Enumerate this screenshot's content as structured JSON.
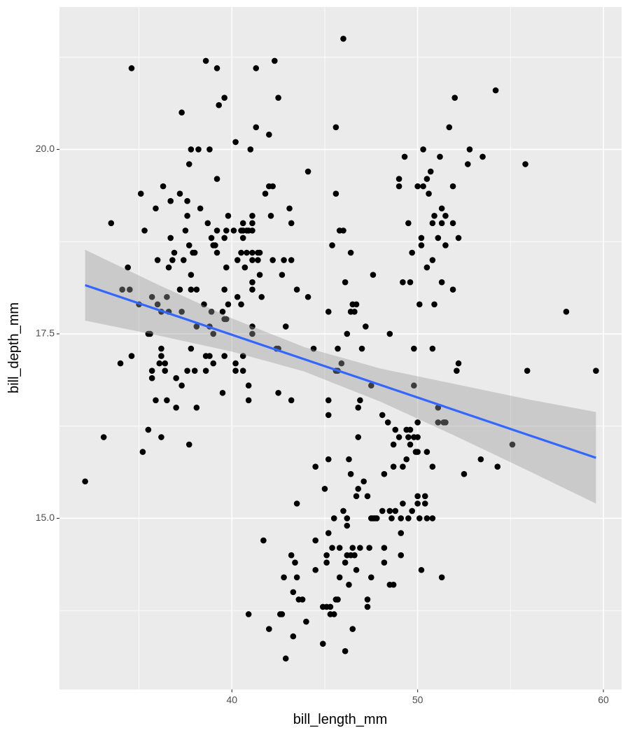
{
  "chart_data": {
    "type": "scatter",
    "x_label": "bill_length_mm",
    "y_label": "bill_depth_mm",
    "xlim": [
      30.72,
      60.98
    ],
    "ylim": [
      12.68,
      21.93
    ],
    "xticks": [
      40,
      50,
      60
    ],
    "yticks": [
      {
        "value": 15,
        "label": "15.0"
      },
      17.5,
      {
        "value": 20,
        "label": "20.0"
      }
    ],
    "x_minor_breaks": [
      35,
      45,
      55
    ],
    "y_minor_breaks": [
      13.75,
      16.25,
      18.75,
      21.25
    ],
    "grid": true,
    "panel_color": "#ebebeb",
    "point_color": "#000000",
    "x": [
      32.1,
      33.1,
      33.5,
      34.0,
      34.1,
      34.4,
      34.5,
      34.6,
      34.6,
      35.0,
      35.1,
      35.2,
      35.3,
      35.5,
      35.5,
      35.6,
      35.7,
      35.7,
      35.7,
      35.9,
      35.9,
      36.0,
      36.0,
      36.2,
      36.2,
      36.2,
      36.2,
      36.1,
      36.3,
      36.4,
      36.4,
      36.5,
      36.5,
      36.6,
      36.7,
      36.6,
      36.7,
      36.8,
      36.9,
      37.0,
      37.0,
      37.2,
      37.2,
      37.3,
      37.3,
      37.3,
      37.4,
      37.5,
      37.6,
      37.6,
      37.6,
      37.7,
      37.7,
      37.7,
      37.8,
      37.8,
      37.8,
      37.8,
      37.9,
      38.0,
      38.0,
      38.1,
      38.1,
      38.1,
      38.2,
      38.3,
      38.5,
      38.6,
      38.6,
      38.6,
      38.7,
      38.8,
      38.8,
      38.8,
      38.9,
      38.9,
      39.0,
      39.0,
      39.0,
      39.1,
      39.2,
      39.2,
      39.2,
      39.2,
      39.3,
      39.5,
      39.5,
      39.6,
      39.6,
      39.6,
      39.7,
      39.6,
      39.6,
      39.7,
      39.7,
      39.8,
      39.8,
      40.1,
      40.2,
      40.2,
      40.2,
      40.3,
      40.3,
      40.5,
      40.5,
      40.5,
      40.6,
      40.6,
      40.6,
      40.6,
      40.6,
      40.7,
      40.8,
      40.8,
      40.9,
      40.9,
      40.9,
      40.9,
      41.0,
      41.1,
      41.1,
      41.1,
      41.1,
      41.1,
      41.1,
      41.1,
      41.1,
      41.1,
      41.3,
      41.3,
      41.4,
      41.4,
      41.5,
      41.5,
      41.6,
      41.7,
      41.8,
      42.0,
      42.0,
      42.1,
      42.0,
      42.2,
      42.2,
      42.3,
      42.4,
      42.5,
      42.5,
      42.5,
      42.6,
      42.7,
      42.7,
      42.8,
      42.8,
      42.9,
      42.9,
      43.1,
      43.2,
      43.2,
      43.2,
      43.2,
      43.3,
      43.3,
      43.4,
      43.5,
      43.5,
      43.5,
      43.6,
      43.8,
      44.0,
      44.1,
      44.1,
      44.4,
      44.5,
      44.5,
      44.5,
      44.9,
      44.9,
      45.0,
      45.1,
      45.1,
      45.1,
      45.2,
      45.2,
      45.2,
      45.2,
      45.2,
      45.3,
      45.3,
      45.4,
      45.4,
      45.5,
      45.5,
      45.6,
      45.6,
      45.6,
      45.6,
      45.7,
      45.7,
      45.7,
      45.8,
      45.8,
      45.8,
      45.9,
      46.0,
      46.0,
      46.0,
      46.1,
      46.1,
      46.1,
      46.2,
      46.2,
      46.2,
      46.2,
      46.3,
      46.3,
      46.4,
      46.4,
      46.4,
      46.5,
      46.4,
      46.5,
      46.5,
      46.6,
      46.6,
      46.7,
      46.7,
      46.7,
      46.8,
      46.8,
      46.8,
      46.9,
      46.9,
      47.0,
      47.1,
      47.2,
      47.3,
      47.3,
      47.3,
      47.4,
      47.5,
      47.5,
      47.5,
      47.6,
      47.6,
      47.7,
      47.8,
      48.1,
      48.1,
      48.2,
      48.2,
      48.2,
      48.4,
      48.5,
      48.5,
      48.5,
      48.6,
      48.7,
      48.7,
      48.8,
      48.8,
      48.7,
      49.0,
      49.0,
      49.0,
      49.1,
      49.1,
      49.1,
      49.2,
      49.2,
      49.2,
      49.3,
      49.4,
      49.4,
      49.5,
      49.5,
      49.5,
      49.6,
      49.6,
      49.6,
      49.7,
      49.7,
      49.8,
      49.8,
      49.8,
      49.9,
      50.0,
      50.0,
      50.0,
      50.0,
      50.0,
      50.0,
      50.1,
      50.1,
      50.2,
      50.2,
      50.2,
      50.3,
      50.3,
      50.4,
      50.4,
      50.5,
      50.5,
      50.5,
      50.5,
      50.6,
      50.7,
      50.8,
      50.8,
      50.8,
      50.8,
      50.8,
      50.9,
      50.9,
      51.1,
      51.1,
      51.1,
      51.2,
      51.3,
      51.3,
      51.3,
      51.3,
      51.4,
      51.5,
      51.5,
      51.5,
      51.7,
      51.9,
      51.9,
      51.9,
      52.0,
      52.1,
      52.2,
      52.2,
      52.5,
      52.7,
      52.8,
      53.4,
      53.5,
      54.2,
      54.3,
      55.1,
      55.8,
      55.9,
      58.0,
      59.6
    ],
    "y": [
      15.5,
      16.1,
      19.0,
      17.1,
      18.1,
      18.4,
      18.1,
      21.1,
      17.2,
      17.9,
      19.4,
      15.9,
      18.9,
      16.2,
      17.5,
      17.5,
      18.0,
      17.0,
      16.9,
      19.2,
      16.6,
      17.9,
      18.5,
      16.1,
      17.3,
      17.2,
      17.8,
      17.1,
      19.5,
      17.0,
      17.1,
      18.0,
      16.6,
      17.8,
      19.3,
      18.4,
      18.8,
      18.5,
      18.6,
      16.9,
      16.5,
      19.4,
      18.1,
      17.8,
      16.8,
      20.5,
      18.5,
      18.9,
      19.3,
      19.1,
      17.0,
      16.0,
      19.8,
      18.7,
      18.1,
      17.3,
      20.0,
      18.3,
      18.6,
      18.6,
      17.0,
      16.5,
      17.6,
      18.1,
      20.0,
      19.2,
      17.9,
      21.2,
      17.0,
      17.2,
      19.0,
      17.6,
      20.0,
      17.2,
      18.8,
      17.8,
      17.1,
      17.5,
      18.7,
      18.7,
      18.6,
      21.1,
      18.9,
      19.6,
      20.6,
      16.7,
      17.8,
      17.2,
      17.7,
      18.1,
      17.7,
      20.7,
      18.8,
      18.4,
      18.9,
      17.9,
      19.1,
      18.9,
      17.1,
      17.0,
      20.1,
      18.5,
      18.0,
      18.9,
      17.9,
      18.6,
      18.8,
      17.2,
      19.0,
      17.0,
      18.9,
      18.4,
      18.6,
      18.9,
      16.6,
      16.8,
      13.7,
      18.9,
      20.0,
      17.6,
      17.5,
      19.1,
      18.6,
      18.1,
      19.0,
      18.2,
      18.5,
      18.9,
      21.1,
      20.3,
      18.6,
      18.5,
      18.6,
      18.3,
      18.0,
      14.7,
      19.4,
      20.2,
      13.5,
      19.1,
      19.5,
      19.5,
      18.5,
      21.2,
      17.3,
      17.3,
      16.7,
      20.7,
      13.7,
      13.7,
      18.3,
      14.2,
      18.5,
      13.1,
      17.6,
      19.2,
      19.0,
      18.5,
      16.6,
      14.5,
      13.4,
      14.0,
      14.4,
      14.2,
      15.2,
      18.1,
      13.9,
      13.9,
      13.6,
      19.7,
      18.0,
      17.3,
      14.7,
      15.7,
      14.3,
      13.8,
      13.3,
      15.4,
      14.5,
      14.4,
      13.8,
      16.4,
      16.6,
      15.8,
      14.8,
      17.8,
      13.8,
      13.7,
      14.6,
      18.7,
      13.7,
      15.0,
      20.3,
      17.0,
      19.4,
      13.9,
      17.3,
      17.0,
      13.9,
      14.2,
      14.6,
      18.9,
      17.1,
      21.5,
      18.9,
      15.1,
      13.2,
      18.2,
      14.4,
      17.5,
      14.9,
      14.5,
      15.0,
      15.8,
      14.1,
      18.6,
      15.6,
      17.8,
      14.6,
      14.5,
      17.9,
      13.5,
      17.8,
      14.5,
      15.3,
      17.9,
      14.3,
      16.1,
      15.4,
      16.5,
      16.6,
      14.6,
      17.3,
      15.5,
      17.6,
      15.3,
      13.8,
      13.9,
      14.6,
      16.8,
      15.0,
      14.2,
      18.3,
      15.0,
      15.0,
      15.0,
      16.4,
      15.1,
      15.6,
      14.6,
      14.4,
      16.3,
      15.1,
      17.5,
      14.1,
      15.0,
      16.0,
      14.1,
      16.2,
      15.1,
      15.7,
      19.6,
      19.5,
      16.1,
      14.8,
      14.5,
      15.0,
      15.2,
      18.2,
      15.7,
      19.9,
      16.2,
      15.8,
      16.1,
      19.0,
      15.0,
      18.2,
      16.2,
      16.0,
      15.1,
      18.6,
      16.1,
      17.3,
      16.8,
      15.9,
      16.1,
      19.5,
      15.3,
      15.2,
      15.9,
      16.3,
      15.0,
      17.9,
      14.3,
      18.7,
      18.8,
      20.0,
      19.5,
      15.3,
      15.2,
      15.0,
      15.9,
      19.6,
      18.4,
      19.4,
      19.7,
      15.0,
      19.0,
      18.5,
      17.3,
      15.7,
      19.1,
      17.9,
      18.8,
      16.5,
      16.3,
      19.9,
      19.2,
      14.2,
      19.0,
      18.2,
      16.3,
      19.1,
      16.3,
      18.7,
      20.3,
      19.5,
      18.1,
      19.0,
      20.7,
      17.0,
      18.8,
      17.1,
      15.6,
      19.8,
      20.0,
      15.8,
      19.9,
      20.8,
      15.7,
      16.0,
      19.8,
      17.0,
      17.8,
      17.0
    ],
    "line": {
      "color": "#3366ff",
      "x": [
        32.1,
        59.6
      ],
      "y": [
        18.16,
        15.82
      ]
    },
    "ribbon": {
      "color": "#999999",
      "x": [
        32.1,
        36,
        40,
        43.9,
        48,
        52,
        56,
        59.6
      ],
      "lower": [
        17.68,
        17.48,
        17.26,
        16.99,
        16.58,
        16.12,
        15.64,
        15.2
      ],
      "upper": [
        18.64,
        18.17,
        17.71,
        17.32,
        17.03,
        16.82,
        16.61,
        16.44
      ]
    }
  }
}
